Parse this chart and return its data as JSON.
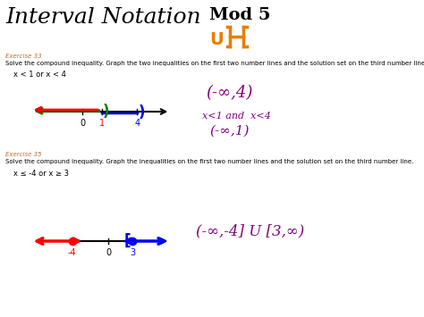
{
  "bg_color": "#ffffff",
  "title": "Interval Notation",
  "mod_text": "Mod 5",
  "orange_u": "U",
  "orange_bracket": "|-|",
  "exercise33_label": "Exercise 33",
  "exercise33_desc": "Solve the compound inequality. Graph the two inequalities on the first two number lines and the solution set on the third number line.",
  "exercise33_ineq": "x < 1 or x < 4",
  "exercise33_answer1": "(-∞,4)",
  "exercise33_answer2": "x<1 and  x<4",
  "exercise33_answer3": "(-∞,1)",
  "exercise35_label": "Exercise 35",
  "exercise35_desc": "Solve the compound inequality. Graph the inequalities on the first two number lines and the solution set on the third number line.",
  "exercise35_ineq": "x ≤ -4 or x ≥ 3",
  "exercise35_answer": "(-∞,-4] U [3,∞)",
  "title_fontsize": 18,
  "mod_fontsize": 14,
  "label_fontsize": 5,
  "desc_fontsize": 5,
  "ineq_fontsize": 6,
  "ans_fontsize1": 13,
  "ans_fontsize2": 8,
  "ans_fontsize3": 11,
  "ans35_fontsize": 12,
  "fig_w": 4.74,
  "fig_h": 3.55,
  "dpi": 100
}
